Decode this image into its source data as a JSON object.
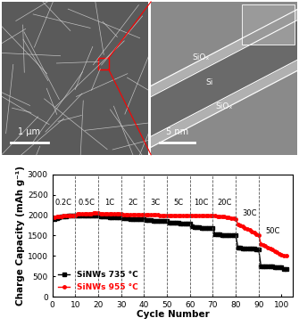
{
  "chart_data": {
    "type": "line",
    "xlabel": "Cycle Number",
    "ylabel": "Charge Capacity (mAh g⁻¹)",
    "xlim": [
      0,
      105
    ],
    "xticks": [
      0,
      10,
      20,
      30,
      40,
      50,
      60,
      70,
      80,
      90,
      100
    ],
    "ylim": [
      0,
      3000
    ],
    "yticks": [
      0,
      500,
      1000,
      1500,
      2000,
      2500,
      3000
    ],
    "legend": "lower left",
    "x": [
      1,
      2,
      3,
      4,
      5,
      6,
      7,
      8,
      9,
      10,
      11,
      12,
      13,
      14,
      15,
      16,
      17,
      18,
      19,
      20,
      21,
      22,
      23,
      24,
      25,
      26,
      27,
      28,
      29,
      30,
      31,
      32,
      33,
      34,
      35,
      36,
      37,
      38,
      39,
      40,
      41,
      42,
      43,
      44,
      45,
      46,
      47,
      48,
      49,
      50,
      51,
      52,
      53,
      54,
      55,
      56,
      57,
      58,
      59,
      60,
      61,
      62,
      63,
      64,
      65,
      66,
      67,
      68,
      69,
      70,
      71,
      72,
      73,
      74,
      75,
      76,
      77,
      78,
      79,
      80,
      81,
      82,
      83,
      84,
      85,
      86,
      87,
      88,
      89,
      90,
      91,
      92,
      93,
      94,
      95,
      96,
      97,
      98,
      99,
      100,
      101,
      102
    ],
    "series": [
      {
        "name": "SiNWs 735 °C",
        "color": "#000000",
        "marker": "square",
        "values": [
          1900,
          1930,
          1950,
          1960,
          1970,
          1975,
          1980,
          1985,
          1990,
          1990,
          2000,
          2000,
          2000,
          1995,
          1995,
          1990,
          1990,
          1990,
          1985,
          1985,
          1970,
          1965,
          1960,
          1960,
          1955,
          1955,
          1950,
          1950,
          1945,
          1945,
          1920,
          1915,
          1915,
          1910,
          1910,
          1905,
          1905,
          1900,
          1900,
          1895,
          1880,
          1875,
          1875,
          1870,
          1870,
          1865,
          1865,
          1860,
          1860,
          1855,
          1820,
          1815,
          1810,
          1810,
          1805,
          1800,
          1800,
          1795,
          1795,
          1790,
          1720,
          1710,
          1705,
          1700,
          1695,
          1690,
          1690,
          1685,
          1680,
          1680,
          1540,
          1530,
          1525,
          1520,
          1520,
          1515,
          1515,
          1510,
          1510,
          1505,
          1200,
          1195,
          1190,
          1185,
          1180,
          1180,
          1175,
          1175,
          1170,
          1170,
          750,
          745,
          740,
          740,
          735,
          735,
          730,
          730,
          725,
          725,
          680,
          670
        ]
      },
      {
        "name": "SiNWs 955 °C",
        "color": "#ff0000",
        "marker": "circle",
        "values": [
          1950,
          1960,
          1970,
          1975,
          1980,
          1985,
          1990,
          1990,
          1995,
          1995,
          2030,
          2035,
          2040,
          2040,
          2045,
          2045,
          2045,
          2050,
          2050,
          2050,
          2040,
          2040,
          2040,
          2040,
          2035,
          2035,
          2035,
          2030,
          2030,
          2030,
          2020,
          2020,
          2020,
          2015,
          2015,
          2015,
          2010,
          2010,
          2010,
          2010,
          2010,
          2010,
          2005,
          2005,
          2005,
          2005,
          2000,
          2000,
          2000,
          2000,
          2000,
          2000,
          2000,
          1995,
          1995,
          1995,
          1995,
          1990,
          1990,
          1990,
          2000,
          2000,
          1995,
          1995,
          1995,
          1990,
          1990,
          1990,
          1990,
          1985,
          1980,
          1975,
          1970,
          1965,
          1960,
          1950,
          1940,
          1930,
          1920,
          1910,
          1780,
          1750,
          1720,
          1690,
          1660,
          1630,
          1600,
          1570,
          1540,
          1520,
          1300,
          1270,
          1240,
          1210,
          1180,
          1150,
          1120,
          1090,
          1060,
          1030,
          1010,
          1000
        ]
      }
    ],
    "dividers": [
      10,
      20,
      30,
      40,
      50,
      60,
      70,
      80,
      90
    ],
    "annotations": [
      {
        "text": "0.2C",
        "x": 5,
        "y": 2200
      },
      {
        "text": "0.5C",
        "x": 15,
        "y": 2200
      },
      {
        "text": "1C",
        "x": 25,
        "y": 2200
      },
      {
        "text": "2C",
        "x": 35,
        "y": 2200
      },
      {
        "text": "3C",
        "x": 45,
        "y": 2200
      },
      {
        "text": "5C",
        "x": 55,
        "y": 2200
      },
      {
        "text": "10C",
        "x": 65,
        "y": 2200
      },
      {
        "text": "20C",
        "x": 75,
        "y": 2200
      },
      {
        "text": "30C",
        "x": 86,
        "y": 1950
      },
      {
        "text": "50C",
        "x": 96,
        "y": 1500
      }
    ]
  },
  "images": {
    "sem": {
      "scale_bar": "1 μm"
    },
    "tem": {
      "scale_bar": "5 nm",
      "labels": [
        "SiOₓ",
        "Si",
        "SiOₓ"
      ]
    }
  }
}
